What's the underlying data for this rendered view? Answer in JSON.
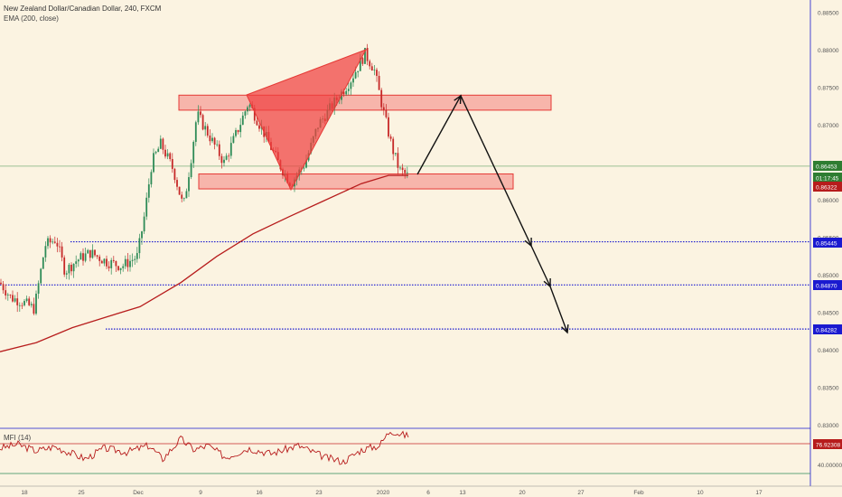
{
  "chart_data": {
    "type": "candlestick",
    "title": "New Zealand Dollar/Canadian Dollar, 240, FXCM",
    "indicator_label": "EMA (200, close)",
    "price_axis": {
      "range": [
        0.83,
        0.885
      ],
      "ticks": [
        "0.88500",
        "0.88000",
        "0.87500",
        "0.87000",
        "0.86500",
        "0.86000",
        "0.85500",
        "0.85000",
        "0.84500",
        "0.84000",
        "0.83500",
        "0.83000"
      ]
    },
    "time_axis": {
      "ticks": [
        "18",
        "25",
        "Dec",
        "9",
        "16",
        "23",
        "2020",
        "6",
        "13",
        "20",
        "27",
        "Feb",
        "10",
        "17"
      ]
    },
    "price_badges": [
      {
        "text": "0.86453",
        "color": "#2e7d32"
      },
      {
        "text": "01:17:45",
        "color": "#2e7d32"
      },
      {
        "text": "0.86322",
        "color": "#b71c1c"
      },
      {
        "text": "0.85445",
        "color": "#1a1ad0"
      },
      {
        "text": "0.84870",
        "color": "#1a1ad0"
      },
      {
        "text": "0.84282",
        "color": "#1a1ad0"
      }
    ],
    "horizontal_levels": [
      {
        "price": 0.85445,
        "color": "#1a1ad0",
        "style": "dotted"
      },
      {
        "price": 0.8487,
        "color": "#1a1ad0",
        "style": "dotted"
      },
      {
        "price": 0.84282,
        "color": "#1a1ad0",
        "style": "dotted"
      },
      {
        "price": 0.86453,
        "color": "#7cb07c",
        "style": "solid"
      }
    ],
    "zones": [
      {
        "label_free": true,
        "price_top": 0.874,
        "price_bottom": 0.872
      },
      {
        "label_free": true,
        "price_top": 0.8635,
        "price_bottom": 0.8615
      }
    ],
    "mfi_panel": {
      "label": "MFI (14)",
      "ticks": [
        "40.00000"
      ],
      "badge": {
        "text": "76.92308",
        "color": "#b71c1c"
      }
    },
    "colors": {
      "background": "#fbf3e1",
      "bull": "#2e8b57",
      "bear": "#c62828",
      "ema": "#b71c1c",
      "zone_fill": "#f26b6b",
      "levels": "#1a1ad0"
    }
  }
}
